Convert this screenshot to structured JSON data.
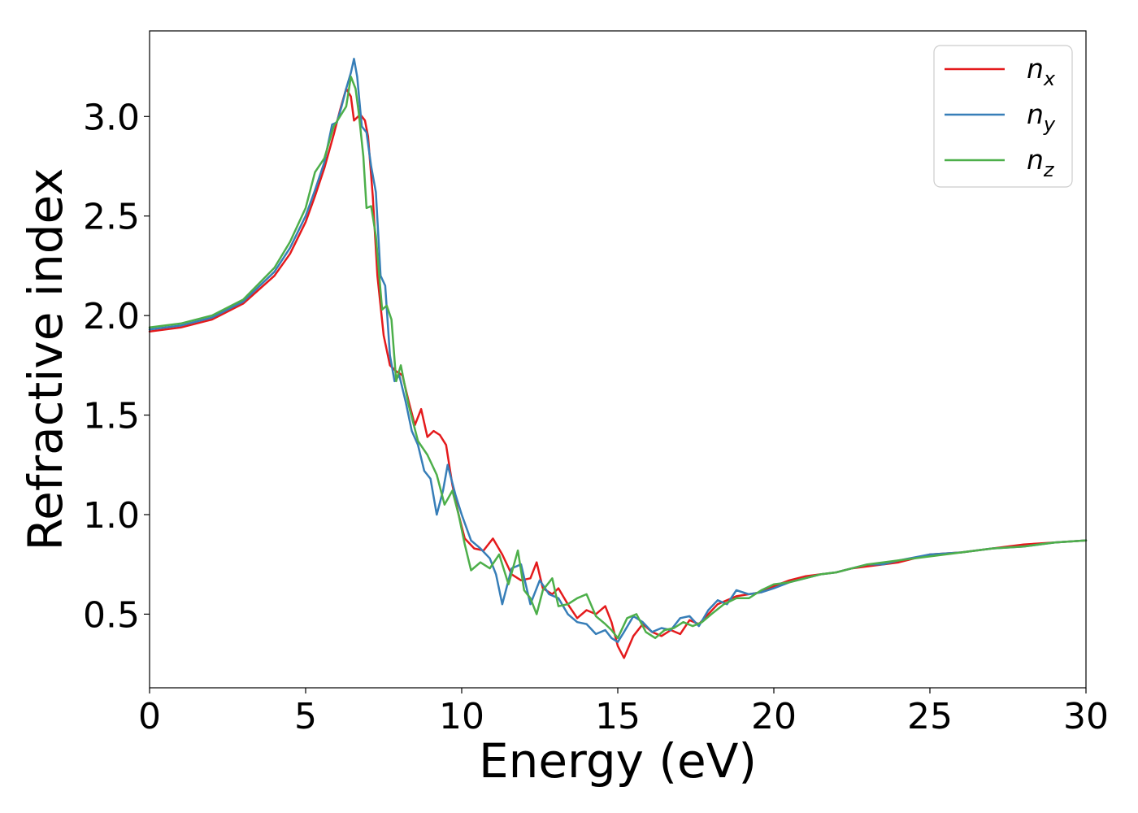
{
  "chart_data": {
    "type": "line",
    "title": "",
    "xlabel": "Energy (eV)",
    "ylabel": "Refractive index",
    "xlim": [
      0,
      30
    ],
    "ylim": [
      0.13,
      3.43
    ],
    "xticks": [
      0,
      5,
      10,
      15,
      20,
      25,
      30
    ],
    "xtick_labels": [
      "0",
      "5",
      "10",
      "15",
      "20",
      "25",
      "30"
    ],
    "yticks": [
      0.5,
      1.0,
      1.5,
      2.0,
      2.5,
      3.0
    ],
    "ytick_labels": [
      "0.5",
      "1.0",
      "1.5",
      "2.0",
      "2.5",
      "3.0"
    ],
    "grid": false,
    "legend_position": "top-right",
    "series": [
      {
        "name": "n_x",
        "label_base": "n",
        "label_sub": "x",
        "color": "#e41a1c",
        "x": [
          0,
          1,
          2,
          3,
          4,
          4.5,
          5,
          5.3,
          5.6,
          5.9,
          6.1,
          6.3,
          6.45,
          6.55,
          6.75,
          6.9,
          7.0,
          7.15,
          7.3,
          7.5,
          7.7,
          7.9,
          8.1,
          8.3,
          8.5,
          8.7,
          8.9,
          9.1,
          9.3,
          9.5,
          9.7,
          9.9,
          10.1,
          10.4,
          10.7,
          11.0,
          11.3,
          11.6,
          11.9,
          12.2,
          12.4,
          12.6,
          12.9,
          13.1,
          13.4,
          13.7,
          14.0,
          14.3,
          14.6,
          14.8,
          15.0,
          15.2,
          15.5,
          15.8,
          16.1,
          16.4,
          16.7,
          17.0,
          17.3,
          17.6,
          17.9,
          18.2,
          18.5,
          18.8,
          19.2,
          19.6,
          20.0,
          20.5,
          21.0,
          21.5,
          22.0,
          22.5,
          23.0,
          23.5,
          24.0,
          25.0,
          26.0,
          27.0,
          28.0,
          29.0,
          30.0
        ],
        "y": [
          1.92,
          1.94,
          1.98,
          2.06,
          2.2,
          2.31,
          2.47,
          2.6,
          2.74,
          2.91,
          3.03,
          3.14,
          3.1,
          2.98,
          3.01,
          2.98,
          2.9,
          2.6,
          2.2,
          1.9,
          1.75,
          1.72,
          1.7,
          1.57,
          1.45,
          1.53,
          1.39,
          1.42,
          1.4,
          1.35,
          1.15,
          1.0,
          0.88,
          0.83,
          0.82,
          0.88,
          0.8,
          0.7,
          0.67,
          0.68,
          0.76,
          0.63,
          0.6,
          0.63,
          0.55,
          0.48,
          0.52,
          0.5,
          0.54,
          0.46,
          0.34,
          0.28,
          0.39,
          0.45,
          0.41,
          0.39,
          0.42,
          0.4,
          0.47,
          0.45,
          0.5,
          0.55,
          0.57,
          0.59,
          0.6,
          0.61,
          0.64,
          0.67,
          0.69,
          0.7,
          0.71,
          0.73,
          0.74,
          0.75,
          0.76,
          0.8,
          0.81,
          0.83,
          0.85,
          0.86,
          0.87
        ]
      },
      {
        "name": "n_y",
        "label_base": "n",
        "label_sub": "y",
        "color": "#377eb8",
        "x": [
          0,
          1,
          2,
          3,
          4,
          4.5,
          5,
          5.3,
          5.6,
          5.85,
          6.0,
          6.15,
          6.3,
          6.45,
          6.55,
          6.65,
          6.8,
          6.95,
          7.1,
          7.25,
          7.4,
          7.55,
          7.7,
          7.85,
          8.0,
          8.2,
          8.4,
          8.6,
          8.8,
          9.0,
          9.2,
          9.4,
          9.55,
          9.8,
          10.0,
          10.3,
          10.6,
          10.9,
          11.1,
          11.3,
          11.6,
          11.9,
          12.2,
          12.5,
          12.8,
          13.1,
          13.4,
          13.7,
          14.0,
          14.3,
          14.6,
          14.8,
          15.0,
          15.2,
          15.5,
          15.8,
          16.1,
          16.4,
          16.7,
          17.0,
          17.3,
          17.6,
          17.9,
          18.2,
          18.5,
          18.8,
          19.2,
          19.6,
          20.0,
          20.5,
          21.0,
          21.5,
          22.0,
          22.5,
          23.0,
          23.5,
          24.0,
          25.0,
          26.0,
          27.0,
          28.0,
          29.0,
          30.0
        ],
        "y": [
          1.93,
          1.95,
          1.99,
          2.07,
          2.22,
          2.34,
          2.5,
          2.63,
          2.77,
          2.96,
          2.97,
          3.05,
          3.14,
          3.22,
          3.29,
          3.2,
          2.95,
          2.92,
          2.75,
          2.62,
          2.2,
          2.15,
          1.8,
          1.67,
          1.7,
          1.57,
          1.42,
          1.35,
          1.22,
          1.18,
          1.0,
          1.12,
          1.25,
          1.1,
          1.0,
          0.87,
          0.83,
          0.78,
          0.7,
          0.55,
          0.73,
          0.75,
          0.55,
          0.67,
          0.6,
          0.58,
          0.5,
          0.46,
          0.45,
          0.4,
          0.42,
          0.38,
          0.36,
          0.41,
          0.49,
          0.46,
          0.41,
          0.43,
          0.42,
          0.48,
          0.49,
          0.44,
          0.52,
          0.57,
          0.55,
          0.62,
          0.6,
          0.61,
          0.63,
          0.66,
          0.68,
          0.7,
          0.71,
          0.73,
          0.75,
          0.75,
          0.77,
          0.8,
          0.81,
          0.83,
          0.84,
          0.86,
          0.87
        ]
      },
      {
        "name": "n_z",
        "label_base": "n",
        "label_sub": "z",
        "color": "#4daf4a",
        "x": [
          0,
          1,
          2,
          3,
          4,
          4.5,
          5,
          5.3,
          5.6,
          5.9,
          6.1,
          6.3,
          6.45,
          6.6,
          6.7,
          6.85,
          6.95,
          7.1,
          7.25,
          7.45,
          7.6,
          7.75,
          7.9,
          8.05,
          8.3,
          8.6,
          8.9,
          9.2,
          9.45,
          9.7,
          9.9,
          10.1,
          10.3,
          10.6,
          10.9,
          11.2,
          11.5,
          11.8,
          12.0,
          12.2,
          12.4,
          12.6,
          12.9,
          13.1,
          13.4,
          13.7,
          14.0,
          14.3,
          14.6,
          14.8,
          15.0,
          15.3,
          15.6,
          15.9,
          16.2,
          16.5,
          16.8,
          17.1,
          17.4,
          17.7,
          18.0,
          18.4,
          18.8,
          19.2,
          19.6,
          20.0,
          20.5,
          21.0,
          21.5,
          22.0,
          22.5,
          23.0,
          23.5,
          24.0,
          25.0,
          26.0,
          27.0,
          28.0,
          29.0,
          30.0
        ],
        "y": [
          1.94,
          1.96,
          2.0,
          2.08,
          2.24,
          2.37,
          2.54,
          2.72,
          2.79,
          2.95,
          3.0,
          3.05,
          3.2,
          3.14,
          3.02,
          2.8,
          2.54,
          2.55,
          2.4,
          2.03,
          2.05,
          1.98,
          1.67,
          1.75,
          1.55,
          1.37,
          1.3,
          1.2,
          1.05,
          1.12,
          1.0,
          0.85,
          0.72,
          0.76,
          0.73,
          0.8,
          0.65,
          0.82,
          0.62,
          0.58,
          0.5,
          0.62,
          0.68,
          0.54,
          0.55,
          0.58,
          0.6,
          0.49,
          0.45,
          0.42,
          0.38,
          0.48,
          0.5,
          0.41,
          0.38,
          0.42,
          0.43,
          0.46,
          0.44,
          0.46,
          0.5,
          0.55,
          0.58,
          0.58,
          0.62,
          0.65,
          0.66,
          0.68,
          0.7,
          0.71,
          0.73,
          0.75,
          0.76,
          0.77,
          0.79,
          0.81,
          0.83,
          0.84,
          0.86,
          0.87
        ]
      }
    ]
  }
}
